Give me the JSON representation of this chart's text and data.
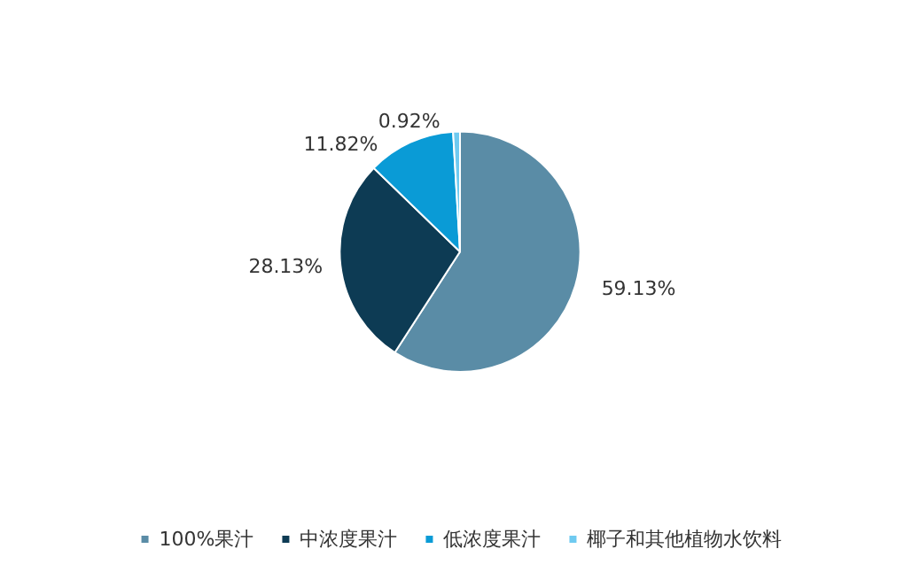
{
  "chart_data": {
    "type": "pie",
    "categories": [
      "100%果汁",
      "中浓度果汁",
      "低浓度果汁",
      "椰子和其他植物水饮料"
    ],
    "values": [
      59.13,
      28.13,
      11.82,
      0.92
    ],
    "colors": [
      "#5a8ca6",
      "#0d3b54",
      "#0a9bd6",
      "#6fcaf0"
    ],
    "value_labels": [
      "59.13%",
      "28.13%",
      "11.82%",
      "0.92%"
    ],
    "legend": "bottom"
  }
}
